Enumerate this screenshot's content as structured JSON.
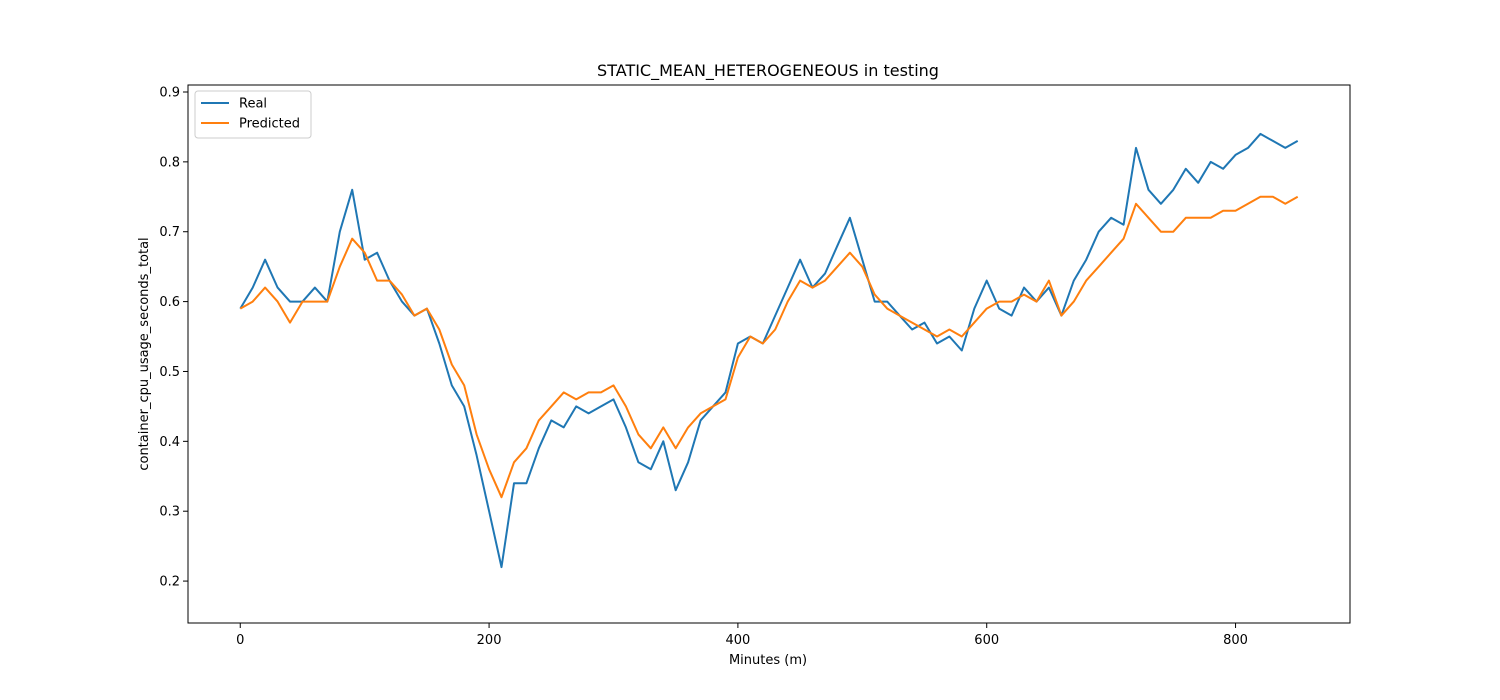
{
  "chart_data": {
    "type": "line",
    "title": "STATIC_MEAN_HETEROGENEOUS in testing",
    "xlabel": "Minutes (m)",
    "ylabel": "container_cpu_usage_seconds_total",
    "xlim": [
      -42,
      892
    ],
    "ylim": [
      0.14,
      0.91
    ],
    "x_ticks": [
      0,
      200,
      400,
      600,
      800
    ],
    "y_ticks": [
      0.2,
      0.3,
      0.4,
      0.5,
      0.6,
      0.7,
      0.8,
      0.9
    ],
    "x_tick_labels": [
      "0",
      "200",
      "400",
      "600",
      "800"
    ],
    "y_tick_labels": [
      "0.2",
      "0.3",
      "0.4",
      "0.5",
      "0.6",
      "0.7",
      "0.8",
      "0.9"
    ],
    "grid": false,
    "legend_position": "upper-left",
    "series": [
      {
        "name": "Real",
        "color": "#1f77b4",
        "x": [
          0,
          10,
          20,
          30,
          40,
          50,
          60,
          70,
          80,
          90,
          100,
          110,
          120,
          130,
          140,
          150,
          160,
          170,
          180,
          190,
          200,
          210,
          220,
          230,
          240,
          250,
          260,
          270,
          280,
          290,
          300,
          310,
          320,
          330,
          340,
          350,
          360,
          370,
          380,
          390,
          400,
          410,
          420,
          430,
          440,
          450,
          460,
          470,
          480,
          490,
          500,
          510,
          520,
          530,
          540,
          550,
          560,
          570,
          580,
          590,
          600,
          610,
          620,
          630,
          640,
          650,
          660,
          670,
          680,
          690,
          700,
          710,
          720,
          730,
          740,
          750,
          760,
          770,
          780,
          790,
          800,
          810,
          820,
          830,
          840,
          850
        ],
        "y": [
          0.59,
          0.62,
          0.66,
          0.62,
          0.6,
          0.6,
          0.62,
          0.6,
          0.7,
          0.76,
          0.66,
          0.67,
          0.63,
          0.6,
          0.58,
          0.59,
          0.54,
          0.48,
          0.45,
          0.38,
          0.3,
          0.22,
          0.34,
          0.34,
          0.39,
          0.43,
          0.42,
          0.45,
          0.44,
          0.45,
          0.46,
          0.42,
          0.37,
          0.36,
          0.4,
          0.33,
          0.37,
          0.43,
          0.45,
          0.47,
          0.54,
          0.55,
          0.54,
          0.58,
          0.62,
          0.66,
          0.62,
          0.64,
          0.68,
          0.72,
          0.66,
          0.6,
          0.6,
          0.58,
          0.56,
          0.57,
          0.54,
          0.55,
          0.53,
          0.59,
          0.63,
          0.59,
          0.58,
          0.62,
          0.6,
          0.62,
          0.58,
          0.63,
          0.66,
          0.7,
          0.72,
          0.71,
          0.82,
          0.76,
          0.74,
          0.76,
          0.79,
          0.77,
          0.8,
          0.79,
          0.81,
          0.82,
          0.84,
          0.83,
          0.82,
          0.83
        ]
      },
      {
        "name": "Predicted",
        "color": "#ff7f0e",
        "x": [
          0,
          10,
          20,
          30,
          40,
          50,
          60,
          70,
          80,
          90,
          100,
          110,
          120,
          130,
          140,
          150,
          160,
          170,
          180,
          190,
          200,
          210,
          220,
          230,
          240,
          250,
          260,
          270,
          280,
          290,
          300,
          310,
          320,
          330,
          340,
          350,
          360,
          370,
          380,
          390,
          400,
          410,
          420,
          430,
          440,
          450,
          460,
          470,
          480,
          490,
          500,
          510,
          520,
          530,
          540,
          550,
          560,
          570,
          580,
          590,
          600,
          610,
          620,
          630,
          640,
          650,
          660,
          670,
          680,
          690,
          700,
          710,
          720,
          730,
          740,
          750,
          760,
          770,
          780,
          790,
          800,
          810,
          820,
          830,
          840,
          850
        ],
        "y": [
          0.59,
          0.6,
          0.62,
          0.6,
          0.57,
          0.6,
          0.6,
          0.6,
          0.65,
          0.69,
          0.67,
          0.63,
          0.63,
          0.61,
          0.58,
          0.59,
          0.56,
          0.51,
          0.48,
          0.41,
          0.36,
          0.32,
          0.37,
          0.39,
          0.43,
          0.45,
          0.47,
          0.46,
          0.47,
          0.47,
          0.48,
          0.45,
          0.41,
          0.39,
          0.42,
          0.39,
          0.42,
          0.44,
          0.45,
          0.46,
          0.52,
          0.55,
          0.54,
          0.56,
          0.6,
          0.63,
          0.62,
          0.63,
          0.65,
          0.67,
          0.65,
          0.61,
          0.59,
          0.58,
          0.57,
          0.56,
          0.55,
          0.56,
          0.55,
          0.57,
          0.59,
          0.6,
          0.6,
          0.61,
          0.6,
          0.63,
          0.58,
          0.6,
          0.63,
          0.65,
          0.67,
          0.69,
          0.74,
          0.72,
          0.7,
          0.7,
          0.72,
          0.72,
          0.72,
          0.73,
          0.73,
          0.74,
          0.75,
          0.75,
          0.74,
          0.75
        ]
      }
    ]
  }
}
